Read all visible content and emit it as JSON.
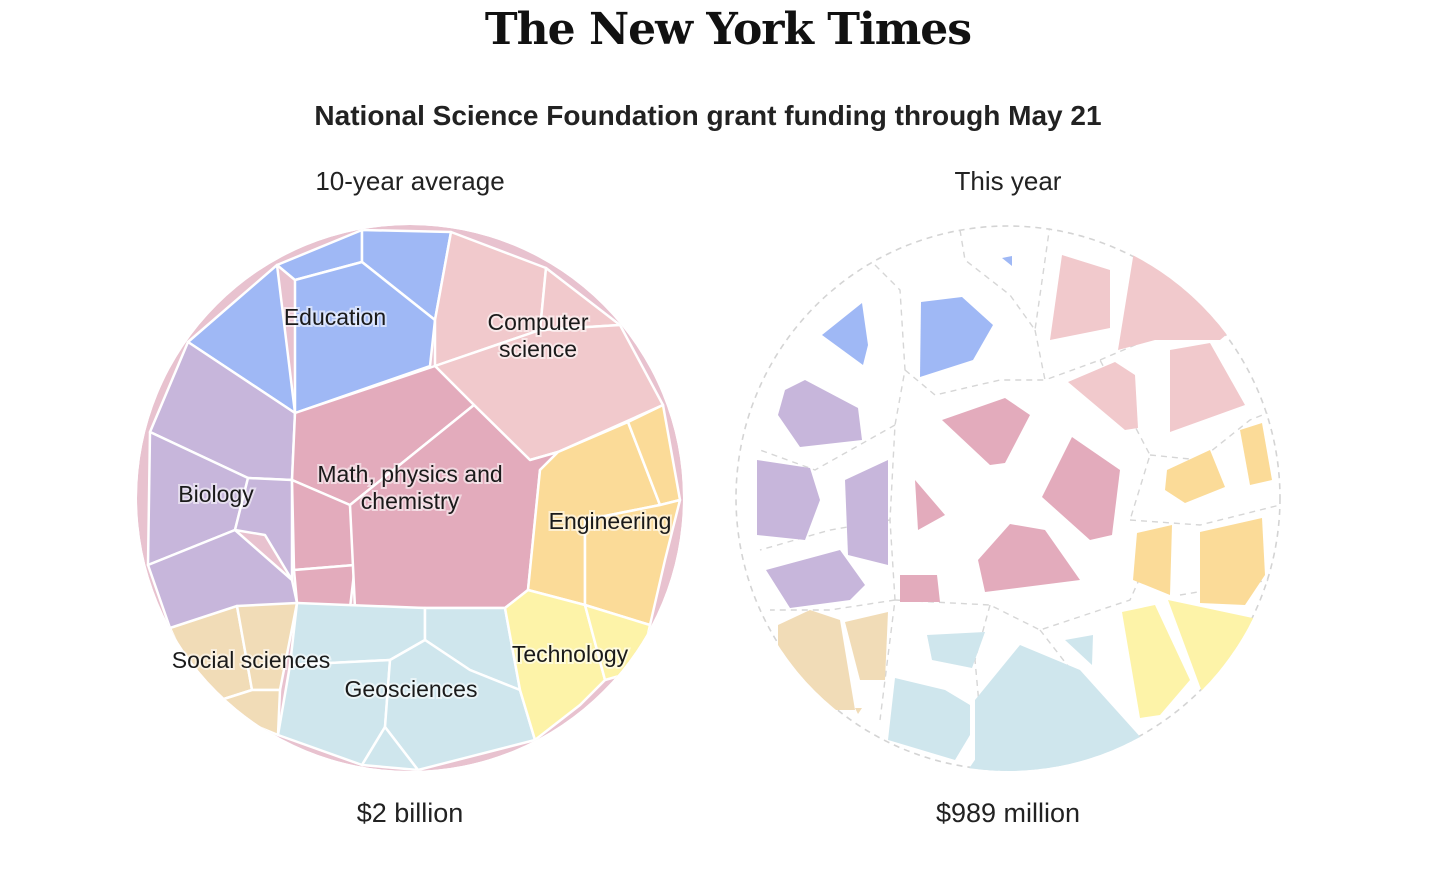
{
  "masthead": "The New York Times",
  "chart_data": {
    "type": "voronoi-treemap",
    "title": "National Science Foundation grant funding through May 21",
    "categories": [
      "Education",
      "Computer science",
      "Biology",
      "Math, physics and chemistry",
      "Engineering",
      "Social sciences",
      "Geosciences",
      "Technology"
    ],
    "colors": {
      "Education": "#9fb8f5",
      "Computer science": "#f1c9cc",
      "Biology": "#c7b6db",
      "Math, physics and chemistry": "#e3abbc",
      "Engineering": "#fbdb98",
      "Social sciences": "#f1dcb7",
      "Geosciences": "#cfe6ed",
      "Technology": "#fdf3a8"
    },
    "panels": [
      {
        "title": "10-year average",
        "total_label": "$2 billion",
        "labels": [
          "Education",
          "Computer\nscience",
          "Biology",
          "Math, physics and\nchemistry",
          "Engineering",
          "Social sciences",
          "Geosciences",
          "Technology"
        ]
      },
      {
        "title": "This year",
        "total_label": "$989 million",
        "labels": []
      }
    ]
  }
}
